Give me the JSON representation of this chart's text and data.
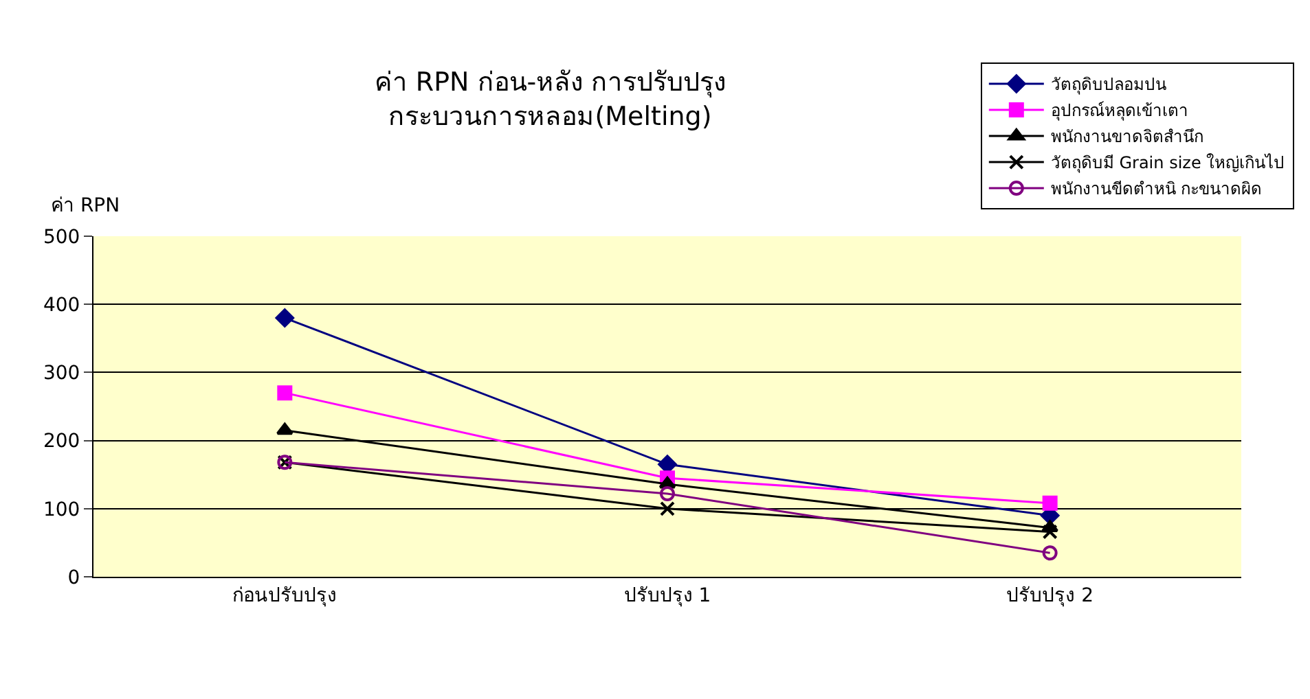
{
  "chart_data": {
    "type": "line",
    "title": "ค่า RPN ก่อน-หลัง การปรับปรุง\nกระบวนการหลอม(Melting)",
    "ylabel": "ค่า RPN",
    "categories": [
      "ก่อนปรับปรุง",
      "ปรับปรุง 1",
      "ปรับปรุง 2"
    ],
    "series": [
      {
        "name": "วัตถุดิบปลอมปน",
        "color": "#000080",
        "marker": "diamond",
        "values": [
          380,
          165,
          90
        ]
      },
      {
        "name": "อุปกรณ์หลุดเข้าเตา",
        "color": "#ff00ff",
        "marker": "square",
        "values": [
          270,
          145,
          108
        ]
      },
      {
        "name": "พนักงานขาดจิตสำนึก",
        "color": "#000000",
        "marker": "triangle",
        "values": [
          215,
          136,
          72
        ]
      },
      {
        "name": "วัตถุดิบมี Grain size ใหญ่เกินไป",
        "color": "#000000",
        "marker": "cross",
        "values": [
          168,
          100,
          66
        ]
      },
      {
        "name": "พนักงานขีดตำหนิ กะขนาดผิด",
        "color": "#800080",
        "marker": "circle",
        "values": [
          168,
          122,
          35
        ]
      }
    ],
    "ylim": [
      0,
      500
    ],
    "yticks": [
      0,
      100,
      200,
      300,
      400,
      500
    ],
    "grid": "y",
    "legend": "top right",
    "line_style": "solid"
  }
}
